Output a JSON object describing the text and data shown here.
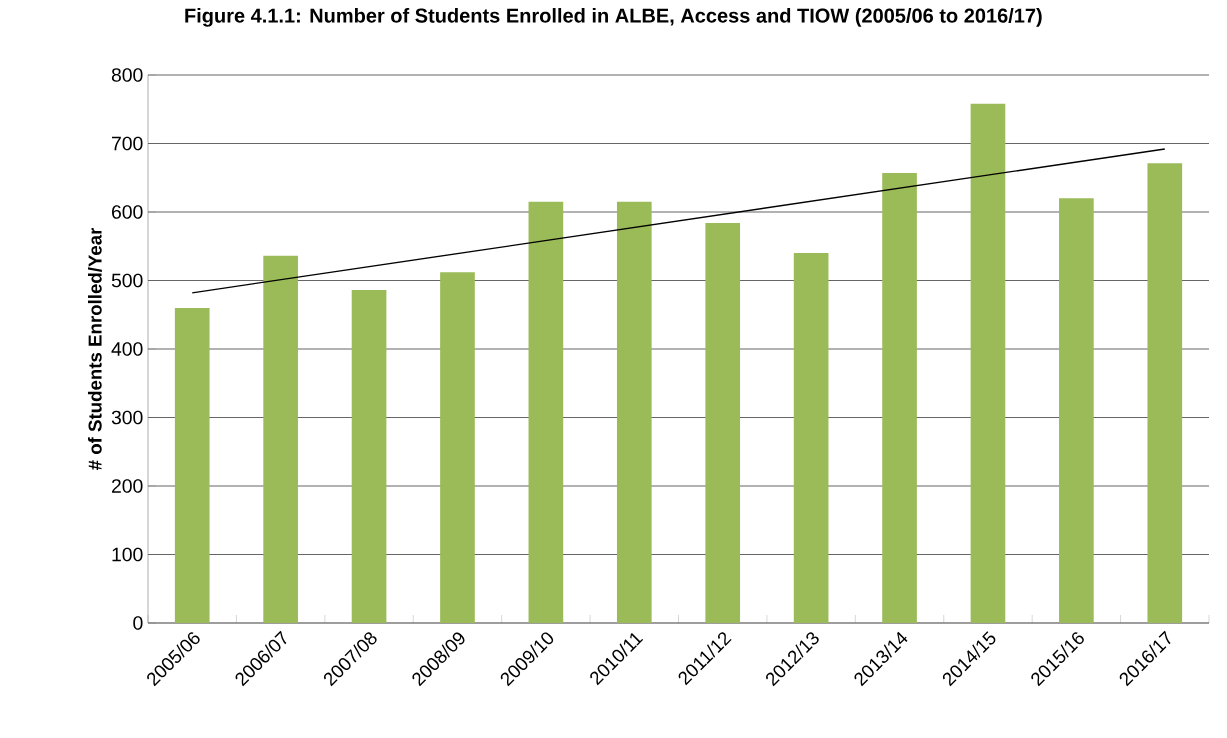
{
  "chart_data": {
    "type": "bar",
    "title": "Figure 4.1.1: Number of Students Enrolled in ALBE, Access and TIOW (2005/06 to 2016/17)",
    "ylabel": "# of Students Enrolled/Year",
    "categories": [
      "2005/06",
      "2006/07",
      "2007/08",
      "2008/09",
      "2009/10",
      "2010/11",
      "2011/12",
      "2012/13",
      "2013/14",
      "2014/15",
      "2015/16",
      "2016/17"
    ],
    "series": [
      {
        "color": "#9bbb59",
        "values": [
          460,
          536,
          486,
          512,
          615,
          615,
          584,
          540,
          657,
          758,
          620,
          671
        ]
      },
      {
        "type": "line",
        "color": "#000000",
        "x": [
          "2005/06",
          "2016/17"
        ],
        "values": [
          482,
          692
        ]
      }
    ],
    "ylim": [
      0,
      800
    ],
    "yticks": [
      0,
      100,
      200,
      300,
      400,
      500,
      600,
      700,
      800
    ],
    "grid": "y"
  }
}
